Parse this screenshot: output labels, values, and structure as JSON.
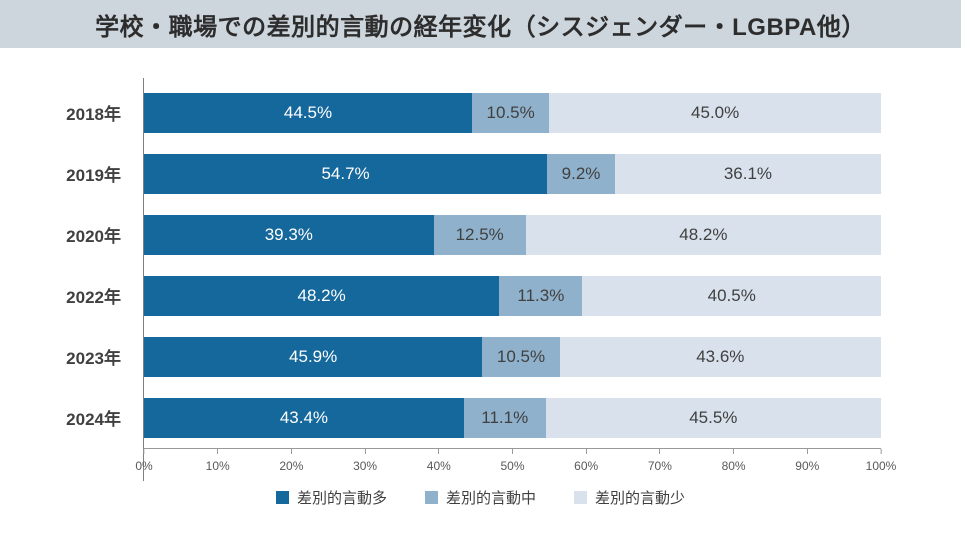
{
  "header": {
    "title": "学校・職場での差別的言動の経年変化（シスジェンダー・LGBPA他）"
  },
  "chart_data": {
    "type": "bar",
    "orientation": "horizontal",
    "stacked": true,
    "title": "学校・職場での差別的言動の経年変化（シスジェンダー・LGBPA他）",
    "categories": [
      "2018年",
      "2019年",
      "2020年",
      "2022年",
      "2023年",
      "2024年"
    ],
    "series": [
      {
        "name": "差別的言動多",
        "color": "#15689C",
        "text_color": "#FFFFFF",
        "values": [
          44.5,
          54.7,
          39.3,
          48.2,
          45.9,
          43.4
        ]
      },
      {
        "name": "差別的言動中",
        "color": "#8FB1CB",
        "text_color": "#404040",
        "values": [
          10.5,
          9.2,
          12.5,
          11.3,
          10.5,
          11.1
        ]
      },
      {
        "name": "差別的言動少",
        "color": "#D9E2EC",
        "text_color": "#404040",
        "values": [
          45.0,
          36.1,
          48.2,
          40.5,
          43.6,
          45.5
        ]
      }
    ],
    "xlim": [
      0,
      100
    ],
    "x_ticks": [
      "0%",
      "10%",
      "20%",
      "30%",
      "40%",
      "50%",
      "60%",
      "70%",
      "80%",
      "90%",
      "100%"
    ],
    "value_suffix": "%",
    "grid": false,
    "legend_position": "bottom",
    "colors": {
      "title_band_bg": "#CDD5DD",
      "axis_line": "#999999",
      "axis_text": "#595959",
      "category_text": "#404040"
    }
  }
}
